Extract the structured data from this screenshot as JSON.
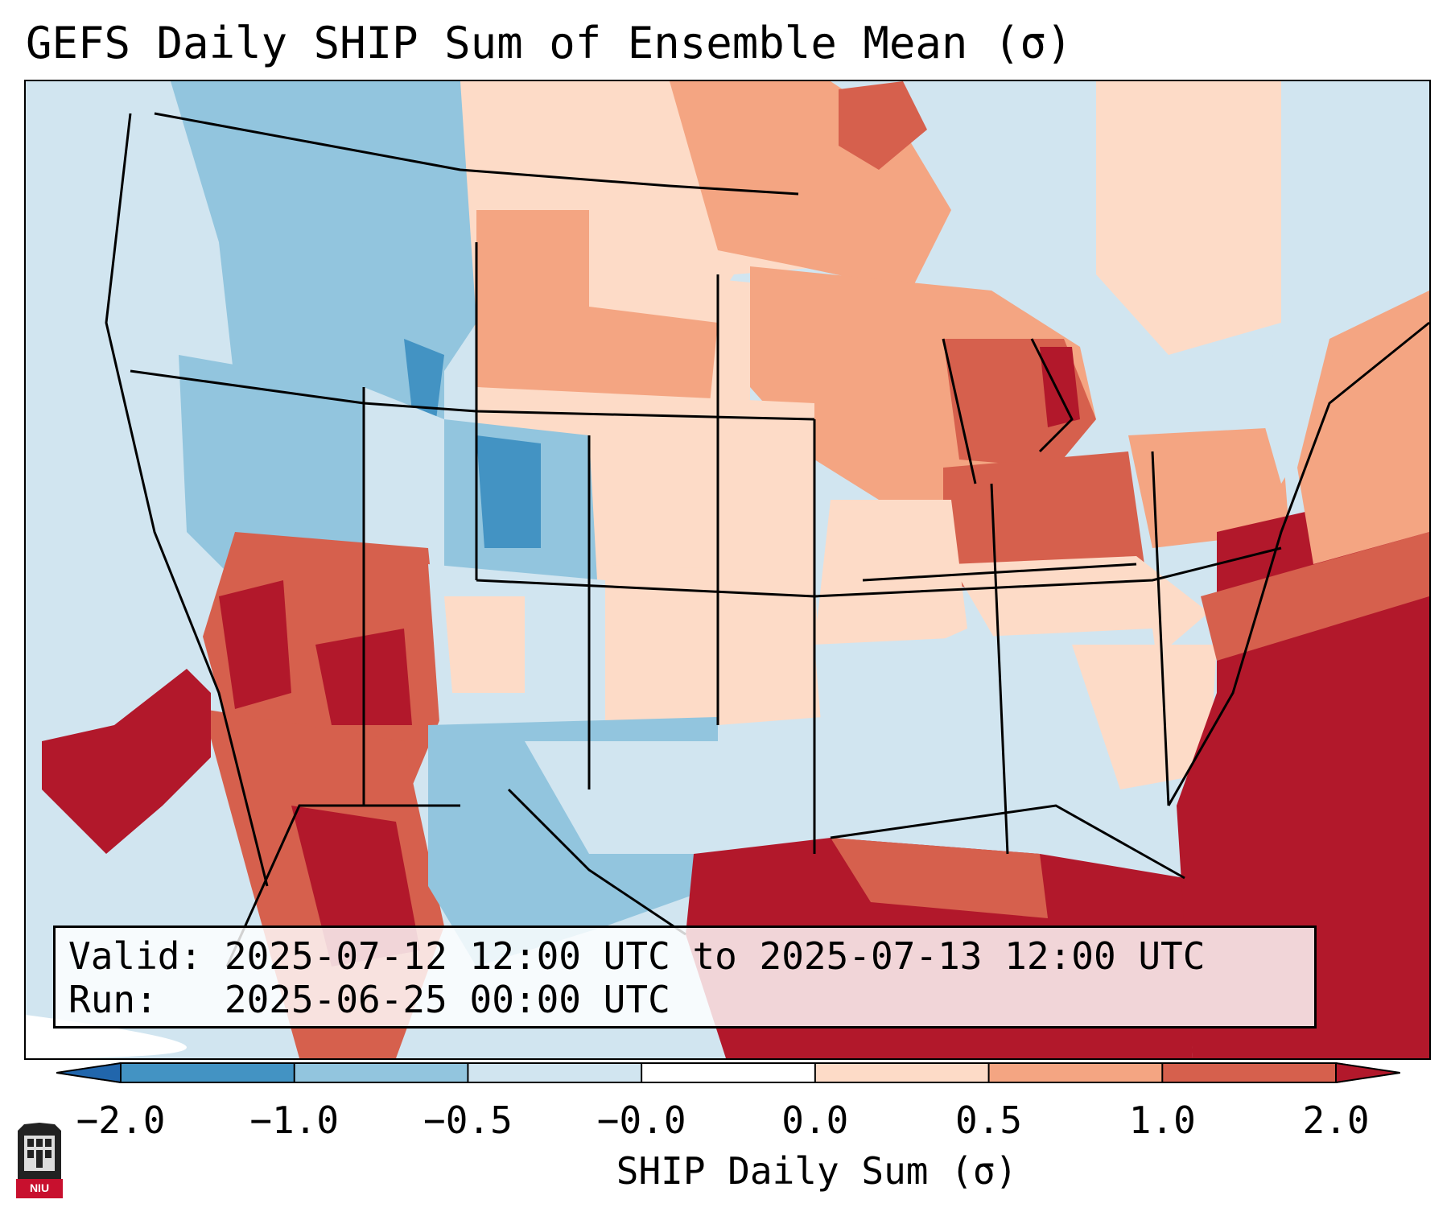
{
  "title": "GEFS Daily SHIP Sum of Ensemble Mean (σ)",
  "info": {
    "valid_label": "Valid:",
    "valid_value": "2025-07-12 12:00 UTC to 2025-07-13 12:00 UTC",
    "run_label": "Run:",
    "run_value": "2025-06-25 00:00 UTC"
  },
  "colorbar": {
    "label": "SHIP Daily Sum (σ)",
    "ticks": [
      "−2.0",
      "−1.0",
      "−0.5",
      "−0.0",
      "0.0",
      "0.5",
      "1.0",
      "2.0"
    ],
    "colors": [
      "#2166ac",
      "#4393c3",
      "#92c5de",
      "#d1e5f0",
      "#ffffff",
      "#fddbc7",
      "#f4a582",
      "#d6604d",
      "#b2182b"
    ],
    "over_color": "#b2182b",
    "under_color": "#2166ac"
  },
  "logo": {
    "name": "NIU"
  },
  "map_regions": {
    "gulf_of_mexico": 2.0,
    "western_atlantic": 2.0,
    "southwest_us": 1.0,
    "great_lakes": 1.0,
    "ohio_valley": 1.0,
    "northern_plains": 0.5,
    "central_plains": 0.25,
    "colorado": -1.0,
    "idaho": -0.75,
    "texas_west": -0.5,
    "southeast_us": -0.25,
    "pacific_ocean": -0.25,
    "northeast_offshore": -0.25,
    "eastern_pacific_offshore": 2.0
  }
}
